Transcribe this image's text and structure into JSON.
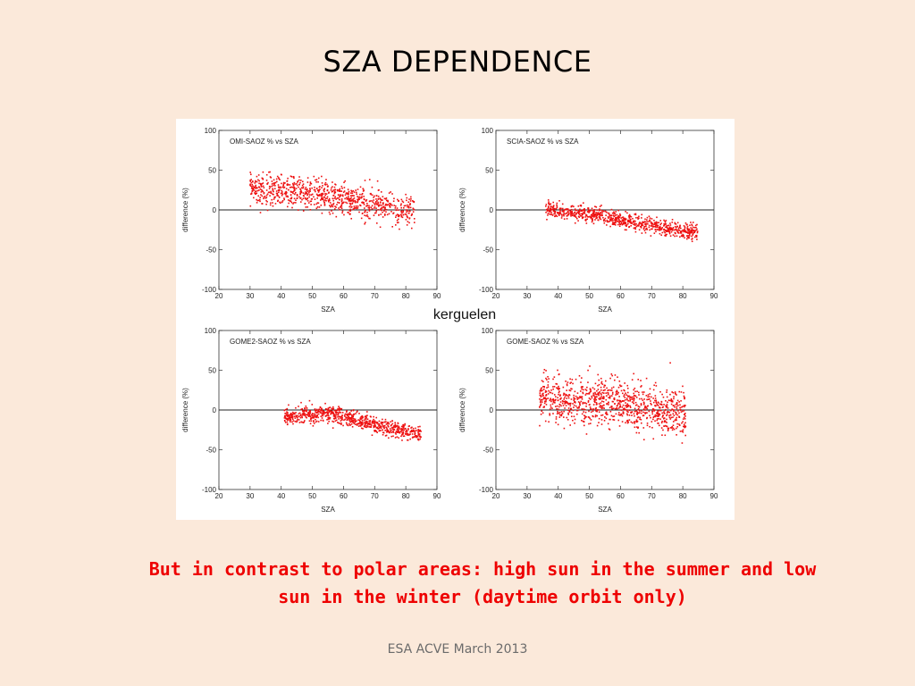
{
  "slide": {
    "title": "SZA DEPENDENCE",
    "caption_line1": "But in contrast to polar areas: high sun in the summer and low",
    "caption_line2": "sun in the winter (daytime orbit only)",
    "footer": "ESA ACVE March 2013"
  },
  "figure": {
    "site_label": "kerguelen",
    "marker_color": "#ee1111"
  },
  "chart_data": [
    {
      "type": "scatter",
      "title": "OMI-SAOZ % vs SZA",
      "xlabel": "SZA",
      "ylabel": "difference (%)",
      "xlim": [
        20,
        90
      ],
      "ylim": [
        -100,
        100
      ],
      "xticks": [
        20,
        30,
        40,
        50,
        60,
        70,
        80,
        90
      ],
      "yticks": [
        100,
        50,
        0,
        -50,
        -100
      ],
      "zero_line": true,
      "x_range": [
        30,
        83
      ],
      "trend": [
        [
          30,
          27
        ],
        [
          45,
          22
        ],
        [
          60,
          14
        ],
        [
          75,
          4
        ],
        [
          83,
          -4
        ]
      ],
      "spread": 10,
      "n_points": 900
    },
    {
      "type": "scatter",
      "title": "SCIA-SAOZ % vs SZA",
      "xlabel": "SZA",
      "ylabel": "difference (%)",
      "xlim": [
        20,
        90
      ],
      "ylim": [
        -100,
        100
      ],
      "xticks": [
        20,
        30,
        40,
        50,
        60,
        70,
        80,
        90
      ],
      "yticks": [
        100,
        50,
        0,
        -50,
        -100
      ],
      "zero_line": true,
      "x_range": [
        36,
        85
      ],
      "trend": [
        [
          36,
          1
        ],
        [
          45,
          -3
        ],
        [
          60,
          -12
        ],
        [
          75,
          -23
        ],
        [
          85,
          -30
        ]
      ],
      "spread": 5,
      "n_points": 800
    },
    {
      "type": "scatter",
      "title": "GOME2-SAOZ % vs SZA",
      "xlabel": "SZA",
      "ylabel": "difference (%)",
      "xlim": [
        20,
        90
      ],
      "ylim": [
        -100,
        100
      ],
      "xticks": [
        20,
        30,
        40,
        50,
        60,
        70,
        80,
        90
      ],
      "yticks": [
        100,
        50,
        0,
        -50,
        -100
      ],
      "zero_line": true,
      "x_range": [
        41,
        85
      ],
      "trend": [
        [
          41,
          -9
        ],
        [
          50,
          -6
        ],
        [
          55,
          -4
        ],
        [
          65,
          -14
        ],
        [
          75,
          -23
        ],
        [
          85,
          -31
        ]
      ],
      "spread": 5,
      "n_points": 800
    },
    {
      "type": "scatter",
      "title": "GOME-SAOZ % vs SZA",
      "xlabel": "SZA",
      "ylabel": "difference (%)",
      "xlim": [
        20,
        90
      ],
      "ylim": [
        -100,
        100
      ],
      "xticks": [
        20,
        30,
        40,
        50,
        60,
        70,
        80,
        90
      ],
      "yticks": [
        100,
        50,
        0,
        -50,
        -100
      ],
      "zero_line": true,
      "x_range": [
        34,
        81
      ],
      "trend": [
        [
          34,
          12
        ],
        [
          45,
          12
        ],
        [
          60,
          8
        ],
        [
          70,
          2
        ],
        [
          81,
          -3
        ]
      ],
      "spread": 14,
      "n_points": 1000
    }
  ]
}
